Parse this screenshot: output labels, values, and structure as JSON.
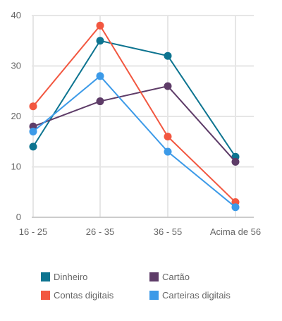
{
  "colors": {
    "grid": "#e6e6e6",
    "axis": "#cccccc",
    "text": "#666666"
  },
  "chart_data": {
    "type": "line",
    "categories": [
      "16 - 25",
      "26 - 35",
      "36 - 55",
      "Acima de 56"
    ],
    "ylim": [
      0,
      40
    ],
    "yticks": [
      0,
      10,
      20,
      30,
      40
    ],
    "ytick_labels": [
      "0",
      "10",
      "20",
      "30",
      "40"
    ],
    "grid": true,
    "legend_position": "bottom",
    "series": [
      {
        "name": "Dinheiro",
        "color": "#0d7490",
        "values": [
          14,
          35,
          32,
          12
        ]
      },
      {
        "name": "Cartão",
        "color": "#5e3c68",
        "values": [
          18,
          23,
          26,
          11
        ]
      },
      {
        "name": "Contas digitais",
        "color": "#f25740",
        "values": [
          22,
          38,
          16,
          3
        ]
      },
      {
        "name": "Carteiras digitais",
        "color": "#3c9ae8",
        "values": [
          17,
          28,
          13,
          2
        ]
      }
    ]
  }
}
